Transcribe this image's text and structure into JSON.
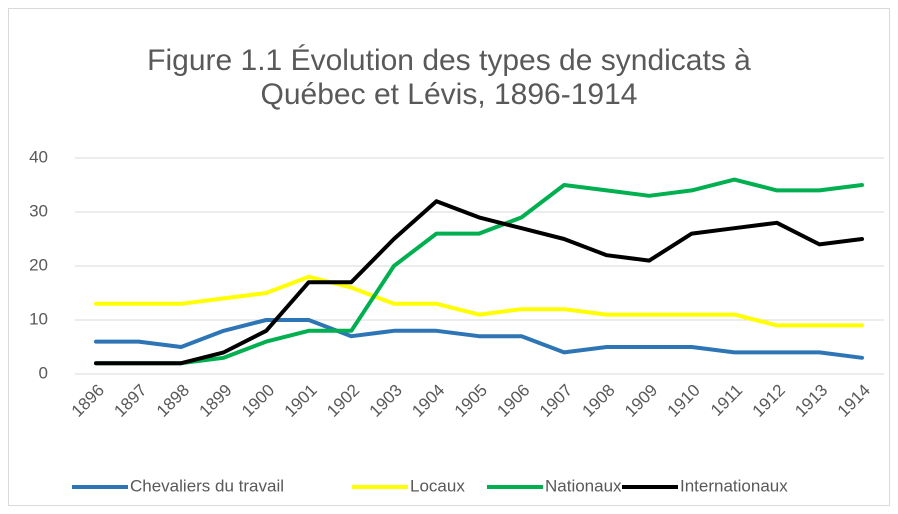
{
  "chart_data": {
    "type": "line",
    "title": "Figure 1.1 Évolution des types de syndicats à Québec et Lévis, 1896-1914",
    "categories": [
      "1896",
      "1897",
      "1898",
      "1899",
      "1900",
      "1901",
      "1902",
      "1903",
      "1904",
      "1905",
      "1906",
      "1907",
      "1908",
      "1909",
      "1910",
      "1911",
      "1912",
      "1913",
      "1914"
    ],
    "series": [
      {
        "name": "Chevaliers du travail",
        "color": "#2e75b6",
        "values": [
          6,
          6,
          5,
          8,
          10,
          10,
          7,
          8,
          8,
          7,
          7,
          4,
          5,
          5,
          5,
          4,
          4,
          4,
          3
        ]
      },
      {
        "name": "Locaux",
        "color": "#ffff00",
        "values": [
          13,
          13,
          13,
          14,
          15,
          18,
          16,
          13,
          13,
          11,
          12,
          12,
          11,
          11,
          11,
          11,
          9,
          9,
          9
        ]
      },
      {
        "name": "Nationaux",
        "color": "#00b050",
        "values": [
          2,
          2,
          2,
          3,
          6,
          8,
          8,
          20,
          26,
          26,
          29,
          35,
          34,
          33,
          34,
          36,
          34,
          34,
          35
        ]
      },
      {
        "name": "Internationaux",
        "color": "#000000",
        "values": [
          2,
          2,
          2,
          4,
          8,
          17,
          17,
          25,
          32,
          29,
          27,
          25,
          22,
          21,
          26,
          27,
          28,
          24,
          25
        ]
      }
    ],
    "ylim": [
      0,
      40
    ],
    "yticks": [
      0,
      10,
      20,
      30,
      40
    ],
    "grid": true,
    "legend": "bottom"
  }
}
